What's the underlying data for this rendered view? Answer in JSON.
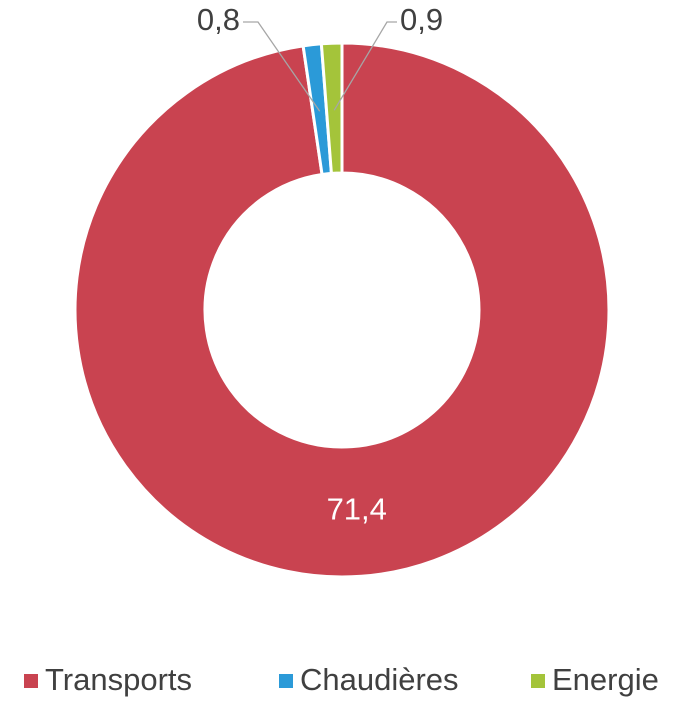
{
  "chart_data": {
    "type": "donut",
    "categories": [
      "Transports",
      "Chaudières",
      "Energie"
    ],
    "values": [
      71.4,
      0.8,
      0.9
    ],
    "value_labels": [
      "71,4",
      "0,8",
      "0,9"
    ],
    "colors": [
      "#c94350",
      "#2b9ad8",
      "#a4c43a"
    ],
    "legend": "bottom"
  }
}
